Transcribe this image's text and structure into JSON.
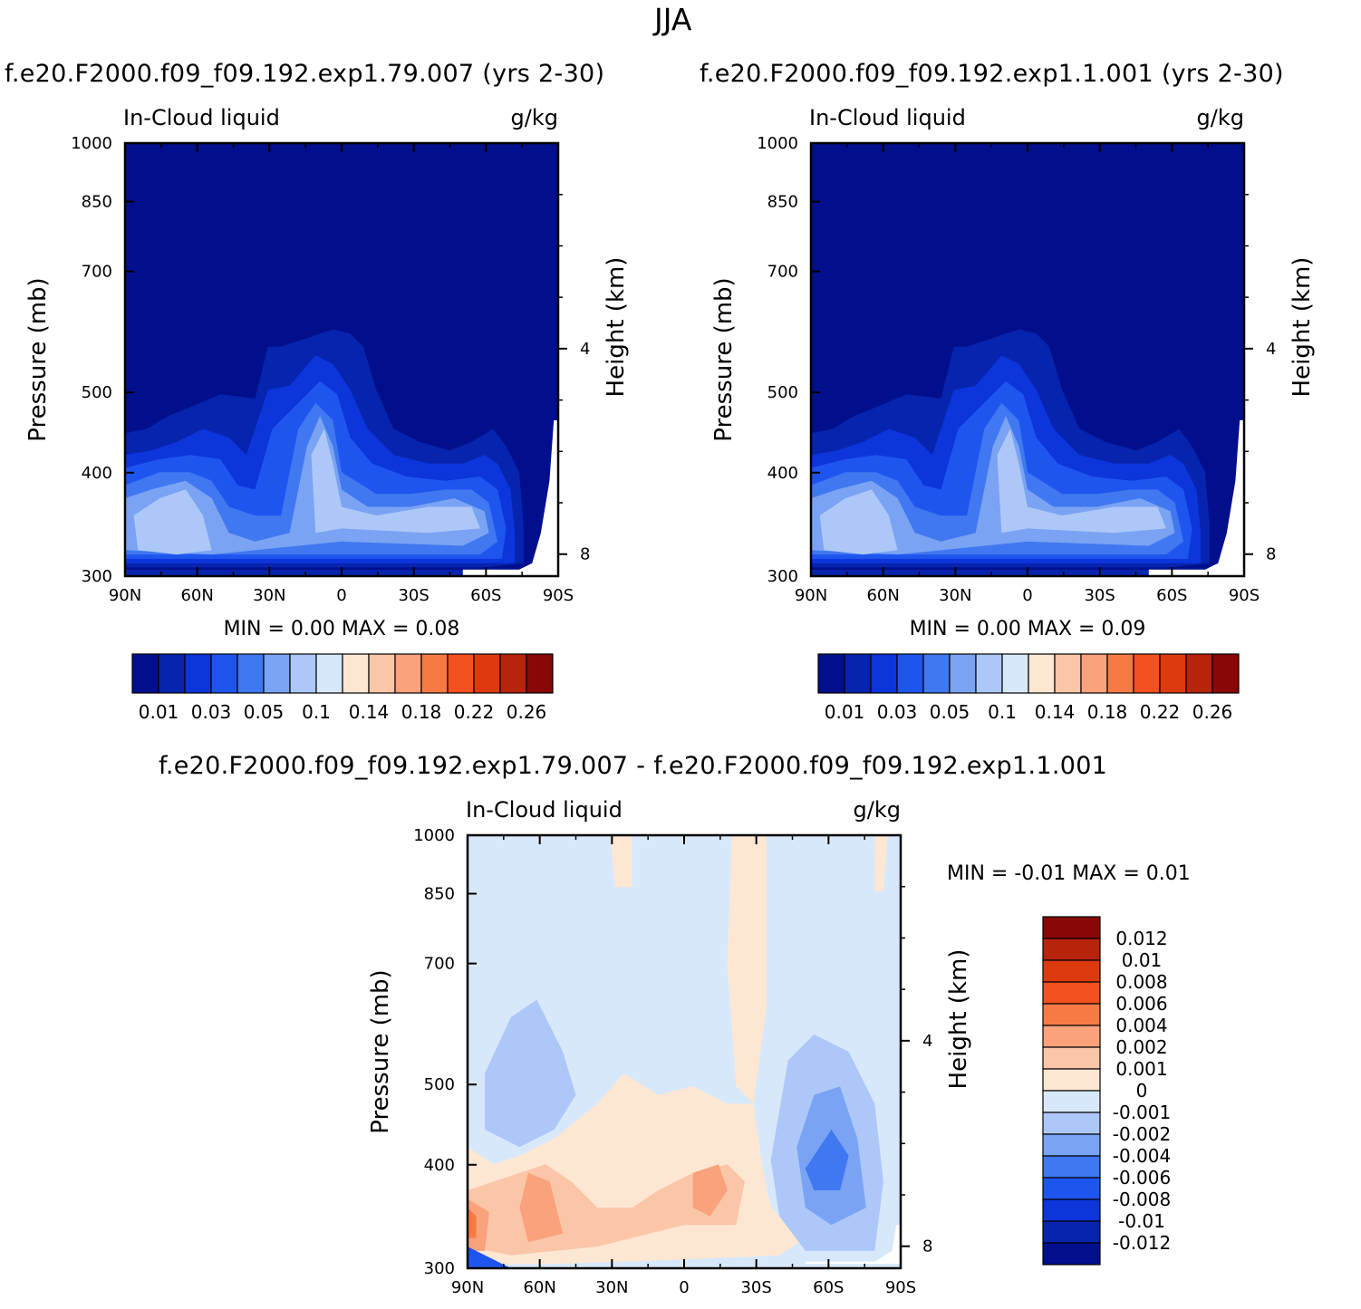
{
  "page": {
    "title": "JJA",
    "exp_a": "f.e20.F2000.f09_f09.192.exp1.79.007 (yrs 2-30)",
    "exp_b": "f.e20.F2000.f09_f09.192.exp1.1.001 (yrs 2-30)",
    "diff_title": "f.e20.F2000.f09_f09.192.exp1.79.007 - f.e20.F2000.f09_f09.192.exp1.1.001"
  },
  "colors": {
    "main_scale": [
      "#020f8c",
      "#0624ad",
      "#0c35dc",
      "#1e55ef",
      "#3f78f0",
      "#7aa3f3",
      "#adc8f8",
      "#d8e8fb",
      "#fde7d3",
      "#fbc6a8",
      "#f9a27c",
      "#f77a45",
      "#f5501f",
      "#de3a0f",
      "#b8230b",
      "#880808"
    ],
    "diff_scale": [
      "#020f8c",
      "#0624ad",
      "#0c35dc",
      "#1e55ef",
      "#3f78f0",
      "#7aa3f3",
      "#adc8f8",
      "#d8e8fb",
      "#fde7d3",
      "#fbc6a8",
      "#f9a27c",
      "#f77a45",
      "#f5501f",
      "#de3a0f",
      "#b8230b",
      "#880808"
    ]
  },
  "chart_data": [
    {
      "type": "contour",
      "id": "panel_a",
      "title": "f.e20.F2000.f09_f09.192.exp1.79.007 (yrs 2-30)",
      "left_label": "In-Cloud liquid",
      "right_label": "g/kg",
      "ylabel": "Pressure (mb)",
      "y2label": "Height (km)",
      "x_ticks": [
        "90N",
        "60N",
        "30N",
        "0",
        "30S",
        "60S",
        "90S"
      ],
      "x_values": [
        90,
        60,
        30,
        0,
        -30,
        -60,
        -90
      ],
      "xlim": [
        90,
        -90
      ],
      "y_ticks": [
        300,
        400,
        500,
        700,
        850,
        1000
      ],
      "ylim": [
        1000,
        300
      ],
      "y2_ticks": [
        8,
        4
      ],
      "min_max": "MIN =    0.00   MAX =    0.08",
      "levels": [
        "0.01",
        "0.03",
        "0.05",
        "0.1",
        "0.14",
        "0.18",
        "0.22",
        "0.26"
      ]
    },
    {
      "type": "contour",
      "id": "panel_b",
      "title": "f.e20.F2000.f09_f09.192.exp1.1.001 (yrs 2-30)",
      "left_label": "In-Cloud liquid",
      "right_label": "g/kg",
      "ylabel": "Pressure (mb)",
      "y2label": "Height (km)",
      "x_ticks": [
        "90N",
        "60N",
        "30N",
        "0",
        "30S",
        "60S",
        "90S"
      ],
      "x_values": [
        90,
        60,
        30,
        0,
        -30,
        -60,
        -90
      ],
      "xlim": [
        90,
        -90
      ],
      "y_ticks": [
        300,
        400,
        500,
        700,
        850,
        1000
      ],
      "ylim": [
        1000,
        300
      ],
      "y2_ticks": [
        8,
        4
      ],
      "min_max": "MIN =    0.00   MAX =    0.09",
      "levels": [
        "0.01",
        "0.03",
        "0.05",
        "0.1",
        "0.14",
        "0.18",
        "0.22",
        "0.26"
      ]
    },
    {
      "type": "contour",
      "id": "panel_diff",
      "title": "f.e20.F2000.f09_f09.192.exp1.79.007 - f.e20.F2000.f09_f09.192.exp1.1.001",
      "left_label": "In-Cloud liquid",
      "right_label": "g/kg",
      "ylabel": "Pressure (mb)",
      "y2label": "Height (km)",
      "x_ticks": [
        "90N",
        "60N",
        "30N",
        "0",
        "30S",
        "60S",
        "90S"
      ],
      "x_values": [
        90,
        60,
        30,
        0,
        -30,
        -60,
        -90
      ],
      "xlim": [
        90,
        -90
      ],
      "y_ticks": [
        300,
        400,
        500,
        700,
        850,
        1000
      ],
      "ylim": [
        1000,
        300
      ],
      "y2_ticks": [
        8,
        4
      ],
      "min_max": "MIN =   -0.01   MAX =    0.01",
      "levels": [
        "0.012",
        "0.01",
        "0.008",
        "0.006",
        "0.004",
        "0.002",
        "0.001",
        "0",
        "-0.001",
        "-0.002",
        "-0.004",
        "-0.006",
        "-0.008",
        "-0.01",
        "-0.012"
      ]
    }
  ]
}
